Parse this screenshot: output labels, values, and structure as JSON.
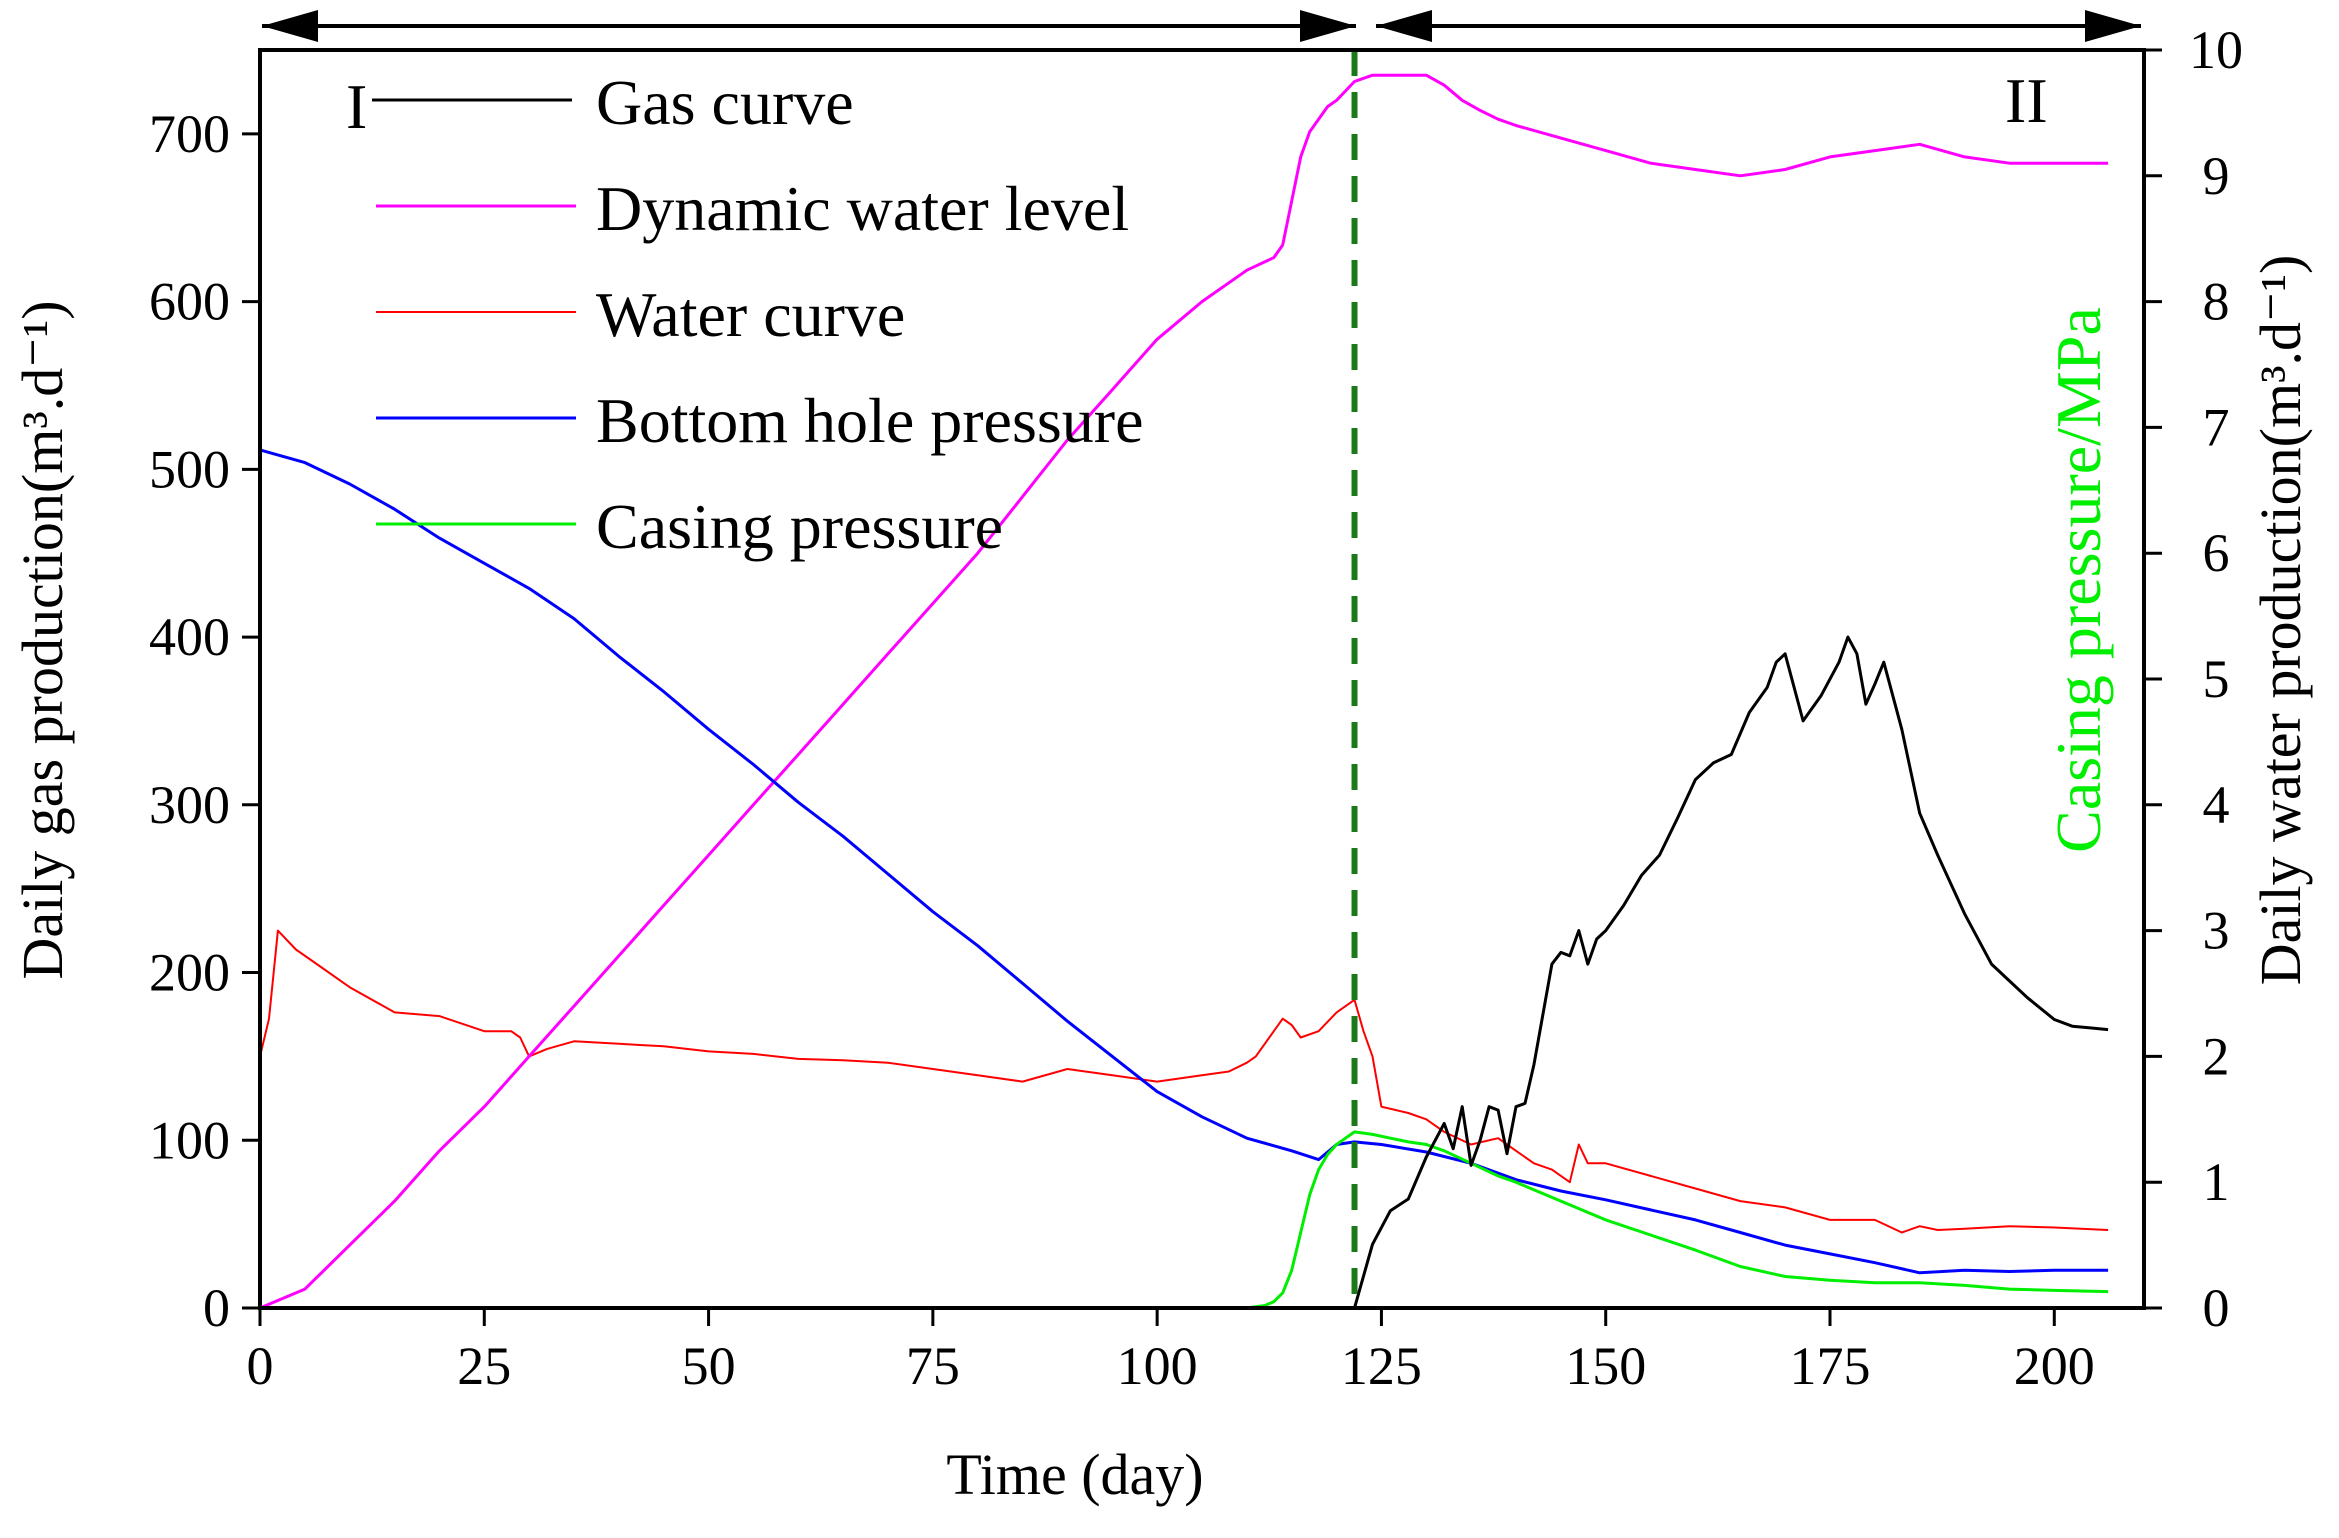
{
  "chart_data": {
    "type": "line",
    "xlabel": "Time (day)",
    "ylabel_left": "Daily gas production(m³.d⁻¹)",
    "ylabel_right": "Daily water production(m³.d⁻¹)",
    "ylabel_right_inner": "Casing pressure/MPa",
    "xlim": [
      0,
      210
    ],
    "ylim_left": [
      0,
      750
    ],
    "ylim_right": [
      0,
      10
    ],
    "x_ticks": [
      "0",
      "25",
      "50",
      "75",
      "100",
      "125",
      "150",
      "175",
      "200"
    ],
    "x_tick_values": [
      0,
      25,
      50,
      75,
      100,
      125,
      150,
      175,
      200
    ],
    "y_left_ticks": [
      "0",
      "100",
      "200",
      "300",
      "400",
      "500",
      "600",
      "700"
    ],
    "y_left_tick_values": [
      0,
      100,
      200,
      300,
      400,
      500,
      600,
      700
    ],
    "y_right_ticks": [
      "0",
      "1",
      "2",
      "3",
      "4",
      "5",
      "6",
      "7",
      "8",
      "9",
      "10"
    ],
    "y_right_tick_values": [
      0,
      1,
      2,
      3,
      4,
      5,
      6,
      7,
      8,
      9,
      10
    ],
    "stage_boundary_x": 122,
    "stages": [
      {
        "label": "I",
        "x_range": [
          0,
          122
        ]
      },
      {
        "label": "II",
        "x_range": [
          125,
          206
        ]
      }
    ],
    "series": [
      {
        "name": "Gas curve",
        "color": "#000000",
        "axis": "left",
        "x": [
          122,
          124,
          126,
          128,
          130,
          132,
          133,
          134,
          135,
          136,
          137,
          138,
          139,
          140,
          141,
          142,
          143,
          144,
          145,
          146,
          147,
          148,
          149,
          150,
          152,
          154,
          156,
          158,
          160,
          162,
          164,
          166,
          168,
          169,
          170,
          171,
          172,
          174,
          176,
          177,
          178,
          179,
          180,
          181,
          183,
          185,
          187,
          190,
          193,
          195,
          197,
          200,
          202,
          204,
          206
        ],
        "y": [
          0,
          38,
          58,
          65,
          90,
          110,
          95,
          120,
          85,
          100,
          120,
          118,
          92,
          120,
          122,
          145,
          175,
          205,
          212,
          210,
          225,
          205,
          220,
          225,
          240,
          258,
          270,
          292,
          315,
          325,
          330,
          355,
          370,
          385,
          390,
          370,
          350,
          365,
          385,
          400,
          390,
          360,
          372,
          385,
          345,
          295,
          270,
          235,
          205,
          195,
          185,
          172,
          168,
          167,
          166
        ]
      },
      {
        "name": "Dynamic water level",
        "color": "#ff00ff",
        "axis": "right",
        "x": [
          0,
          5,
          10,
          15,
          20,
          25,
          30,
          35,
          40,
          45,
          50,
          55,
          60,
          65,
          70,
          75,
          80,
          85,
          90,
          95,
          100,
          105,
          110,
          113,
          114,
          115,
          116,
          117,
          118,
          119,
          120,
          122,
          124,
          126,
          128,
          130,
          132,
          134,
          136,
          138,
          140,
          145,
          150,
          155,
          160,
          165,
          170,
          175,
          180,
          185,
          190,
          195,
          200,
          206
        ],
        "y": [
          0.0,
          0.15,
          0.5,
          0.85,
          1.25,
          1.6,
          2.0,
          2.4,
          2.8,
          3.2,
          3.6,
          4.0,
          4.4,
          4.8,
          5.2,
          5.6,
          6.0,
          6.45,
          6.9,
          7.3,
          7.7,
          8.0,
          8.25,
          8.35,
          8.45,
          8.8,
          9.15,
          9.35,
          9.45,
          9.55,
          9.6,
          9.75,
          9.8,
          9.8,
          9.8,
          9.8,
          9.72,
          9.6,
          9.52,
          9.45,
          9.4,
          9.3,
          9.2,
          9.1,
          9.05,
          9.0,
          9.05,
          9.15,
          9.2,
          9.25,
          9.15,
          9.1,
          9.1,
          9.1
        ]
      },
      {
        "name": "Water curve",
        "color": "#ff0000",
        "axis": "right",
        "x": [
          0,
          1,
          2,
          4,
          6,
          10,
          15,
          20,
          25,
          28,
          29,
          30,
          32,
          35,
          40,
          45,
          50,
          55,
          60,
          65,
          70,
          75,
          80,
          85,
          90,
          95,
          100,
          105,
          108,
          110,
          111,
          113,
          114,
          115,
          116,
          118,
          120,
          122,
          123,
          124,
          125,
          128,
          130,
          132,
          135,
          138,
          140,
          142,
          144,
          146,
          147,
          148,
          150,
          155,
          160,
          165,
          170,
          175,
          180,
          183,
          185,
          187,
          190,
          195,
          200,
          206
        ],
        "y": [
          2.0,
          2.3,
          3.0,
          2.85,
          2.75,
          2.55,
          2.35,
          2.32,
          2.2,
          2.2,
          2.15,
          2.0,
          2.06,
          2.12,
          2.1,
          2.08,
          2.04,
          2.02,
          1.98,
          1.97,
          1.95,
          1.9,
          1.85,
          1.8,
          1.9,
          1.85,
          1.8,
          1.85,
          1.88,
          1.95,
          2.0,
          2.2,
          2.3,
          2.25,
          2.15,
          2.2,
          2.35,
          2.45,
          2.2,
          2.0,
          1.6,
          1.55,
          1.5,
          1.4,
          1.3,
          1.35,
          1.25,
          1.15,
          1.1,
          1.0,
          1.3,
          1.15,
          1.15,
          1.05,
          0.95,
          0.85,
          0.8,
          0.7,
          0.7,
          0.6,
          0.65,
          0.62,
          0.63,
          0.65,
          0.64,
          0.62
        ]
      },
      {
        "name": "Bottom hole pressure",
        "color": "#0000ff",
        "axis": "right",
        "x": [
          0,
          5,
          10,
          15,
          20,
          25,
          30,
          35,
          40,
          45,
          50,
          55,
          60,
          65,
          70,
          75,
          80,
          85,
          90,
          95,
          100,
          105,
          110,
          115,
          118,
          120,
          122,
          125,
          130,
          135,
          140,
          145,
          150,
          155,
          160,
          165,
          170,
          175,
          180,
          185,
          190,
          195,
          200,
          206
        ],
        "y": [
          6.82,
          6.72,
          6.55,
          6.35,
          6.12,
          5.92,
          5.72,
          5.48,
          5.18,
          4.9,
          4.6,
          4.32,
          4.02,
          3.75,
          3.45,
          3.15,
          2.88,
          2.58,
          2.28,
          2.0,
          1.72,
          1.52,
          1.35,
          1.25,
          1.18,
          1.3,
          1.32,
          1.3,
          1.24,
          1.15,
          1.02,
          0.93,
          0.86,
          0.78,
          0.7,
          0.6,
          0.5,
          0.43,
          0.36,
          0.28,
          0.3,
          0.29,
          0.3,
          0.3
        ]
      },
      {
        "name": "Casing pressure",
        "color": "#00ee00",
        "axis": "right",
        "x": [
          0,
          50,
          100,
          110,
          112,
          113,
          114,
          115,
          116,
          117,
          118,
          119,
          120,
          121,
          122,
          124,
          126,
          128,
          130,
          132,
          135,
          138,
          140,
          145,
          150,
          155,
          160,
          165,
          170,
          175,
          180,
          185,
          190,
          195,
          200,
          206
        ],
        "y": [
          0,
          0,
          0,
          0,
          0.02,
          0.05,
          0.12,
          0.3,
          0.6,
          0.9,
          1.1,
          1.22,
          1.3,
          1.35,
          1.4,
          1.38,
          1.35,
          1.32,
          1.3,
          1.25,
          1.15,
          1.05,
          1.0,
          0.85,
          0.7,
          0.58,
          0.46,
          0.33,
          0.25,
          0.22,
          0.2,
          0.2,
          0.18,
          0.15,
          0.14,
          0.13
        ]
      }
    ]
  }
}
